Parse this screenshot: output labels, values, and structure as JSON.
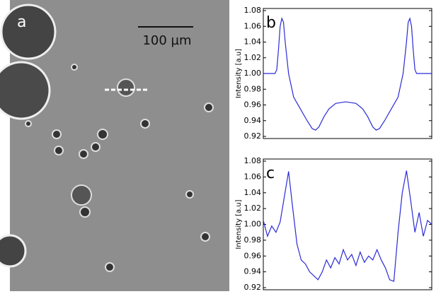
{
  "panel_a": {
    "label": "a",
    "scale_bar": "100 µm"
  },
  "chart_data": [
    {
      "type": "line",
      "panel_label": "b",
      "ylabel": "Intensity [a.u]",
      "color": "#2b2bd6",
      "xlim": [
        0,
        100
      ],
      "ylim": [
        0.92,
        1.08
      ],
      "yticks": [
        0.92,
        0.94,
        0.96,
        0.98,
        {
          "value": 1.0,
          "label": "1.00"
        },
        1.02,
        1.04,
        1.06,
        1.08
      ],
      "x": [
        0,
        7,
        8,
        9,
        10,
        11,
        12,
        13,
        15,
        18,
        22,
        26,
        29,
        31,
        33,
        36,
        39,
        43,
        49,
        55,
        59,
        62,
        65,
        67,
        69,
        72,
        76,
        80,
        83,
        85,
        86,
        87,
        88,
        89,
        90,
        91,
        100
      ],
      "values": [
        1.0,
        1.0,
        1.005,
        1.03,
        1.06,
        1.07,
        1.065,
        1.04,
        1.0,
        0.97,
        0.955,
        0.94,
        0.93,
        0.928,
        0.932,
        0.945,
        0.955,
        0.962,
        0.964,
        0.962,
        0.955,
        0.945,
        0.932,
        0.928,
        0.93,
        0.94,
        0.955,
        0.97,
        1.0,
        1.04,
        1.065,
        1.07,
        1.06,
        1.03,
        1.005,
        1.0,
        1.0
      ]
    },
    {
      "type": "line",
      "panel_label": "c",
      "ylabel": "Intensity [a.u]",
      "color": "#2b2bd6",
      "xlim": [
        0,
        100
      ],
      "ylim": [
        0.92,
        1.08
      ],
      "yticks": [
        0.92,
        0.94,
        0.96,
        0.98,
        {
          "value": 1.0,
          "label": "1.00"
        },
        1.02,
        1.04,
        1.06,
        1.08
      ],
      "x": [
        0,
        2.5,
        5,
        7.5,
        10,
        12.5,
        15,
        17.5,
        20,
        22.5,
        25,
        27.5,
        30,
        32.5,
        35,
        37.5,
        40,
        42.5,
        45,
        47.5,
        50,
        52.5,
        55,
        57.5,
        60,
        62.5,
        65,
        67.5,
        70,
        72.5,
        75,
        77.5,
        80,
        82.5,
        85,
        87.5,
        90,
        92.5,
        95,
        97.5,
        100
      ],
      "values": [
        1.005,
        0.985,
        0.998,
        0.99,
        1.003,
        1.035,
        1.067,
        1.02,
        0.975,
        0.955,
        0.95,
        0.94,
        0.935,
        0.93,
        0.94,
        0.955,
        0.945,
        0.958,
        0.95,
        0.968,
        0.955,
        0.962,
        0.948,
        0.965,
        0.952,
        0.96,
        0.955,
        0.968,
        0.955,
        0.945,
        0.93,
        0.928,
        0.99,
        1.04,
        1.068,
        1.03,
        0.99,
        1.015,
        0.985,
        1.005,
        1.0
      ]
    }
  ]
}
